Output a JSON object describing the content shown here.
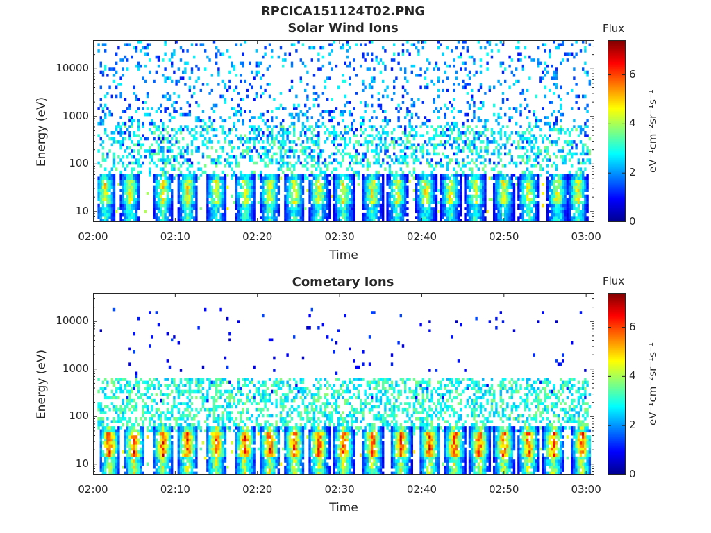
{
  "figure": {
    "suptitle": "RPCICA151124T02.PNG"
  },
  "colorbar": {
    "title": "Flux",
    "unit_label": "eV⁻¹cm⁻²sr⁻¹s⁻¹",
    "ticks": [
      "0",
      "2",
      "4",
      "6"
    ],
    "range": [
      0,
      7.4
    ],
    "colormap": "jet"
  },
  "chart_data": [
    {
      "type": "heatmap",
      "title": "Solar Wind Ions",
      "xlabel": "Time",
      "ylabel": "Energy (eV)",
      "xticks": [
        "02:00",
        "02:10",
        "02:20",
        "02:30",
        "02:40",
        "02:50",
        "03:00"
      ],
      "yticks": [
        "10",
        "100",
        "1000",
        "10000"
      ],
      "x_range_minutes": [
        0,
        61
      ],
      "y_range_eV": [
        6,
        40000
      ],
      "y_scale": "log",
      "value_range": [
        0,
        7.4
      ],
      "bursts_minutes": [
        1.5,
        4.5,
        8.5,
        11.5,
        15,
        18.5,
        21.5,
        24.5,
        27.5,
        30.5,
        34,
        37,
        40.5,
        43.5,
        46.5,
        50,
        53,
        56.5,
        59
      ],
      "burst_energy_eV": [
        15,
        50
      ],
      "burst_peak_flux": 5,
      "background_energy_eV": [
        100,
        40000
      ],
      "background_flux": [
        1,
        3
      ]
    },
    {
      "type": "heatmap",
      "title": "Cometary Ions",
      "xlabel": "Time",
      "ylabel": "Energy (eV)",
      "xticks": [
        "02:00",
        "02:10",
        "02:20",
        "02:30",
        "02:40",
        "02:50",
        "03:00"
      ],
      "yticks": [
        "10",
        "100",
        "1000",
        "10000"
      ],
      "x_range_minutes": [
        0,
        61
      ],
      "y_range_eV": [
        6,
        40000
      ],
      "y_scale": "log",
      "value_range": [
        0,
        7.4
      ],
      "bursts_minutes": [
        2,
        5,
        8.5,
        11.5,
        15,
        18.5,
        21.5,
        24.5,
        27.5,
        30.5,
        34,
        37.5,
        41,
        44,
        47,
        50,
        53,
        56,
        59.5
      ],
      "burst_energy_eV": [
        15,
        45
      ],
      "burst_peak_flux": 6.5,
      "background_energy_eV": [
        200,
        20000
      ],
      "background_flux": [
        0.5,
        1.5
      ]
    }
  ]
}
